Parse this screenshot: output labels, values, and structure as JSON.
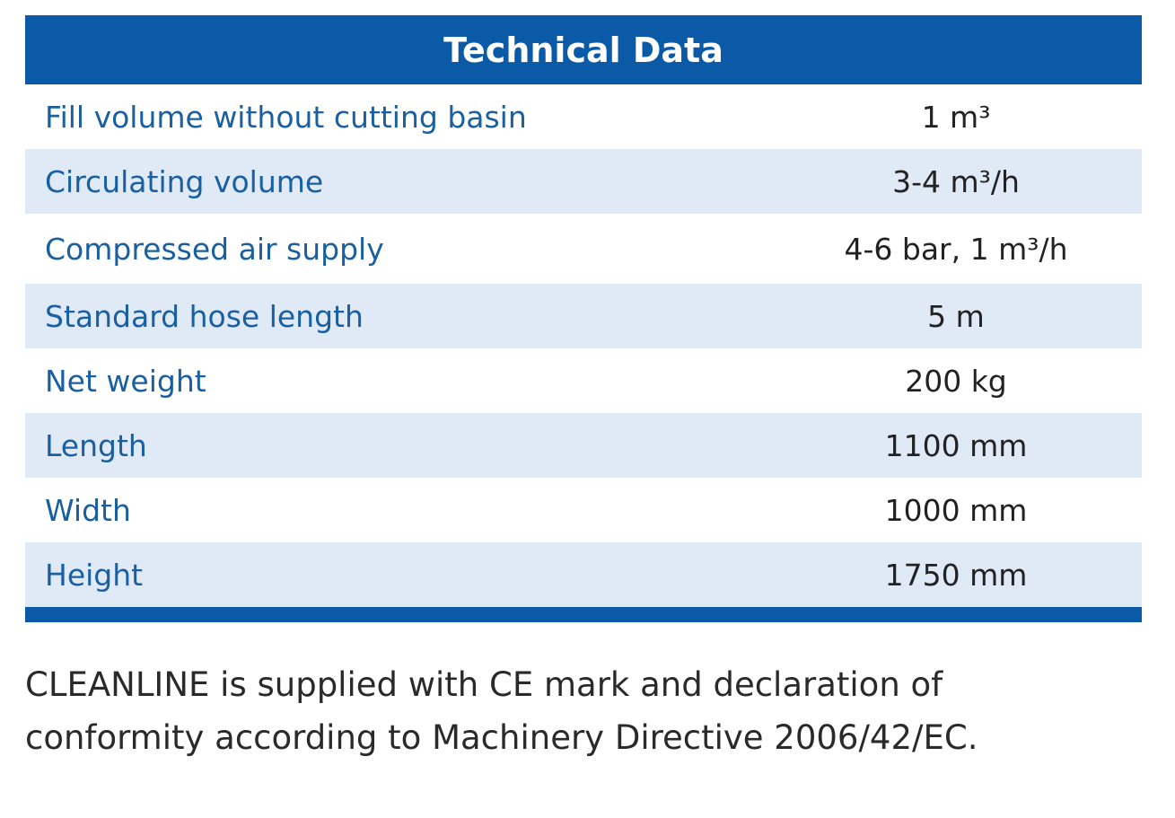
{
  "table": {
    "title": "Technical Data",
    "rows": [
      [
        "Fill volume without cutting basin",
        "1 m³"
      ],
      [
        "Circulating volume",
        "3-4 m³/h"
      ],
      [
        "Compressed air supply",
        "4-6 bar, 1 m³/h"
      ],
      [
        "Standard hose length",
        "5 m"
      ],
      [
        "Net weight",
        "200 kg"
      ],
      [
        "Length",
        "1100 mm"
      ],
      [
        "Width",
        "1000 mm"
      ],
      [
        "Height",
        "1750 mm"
      ]
    ]
  },
  "note": [
    "CLEANLINE is supplied with CE mark and declaration of",
    "conformity according to Machinery Directive 2006/42/EC."
  ]
}
